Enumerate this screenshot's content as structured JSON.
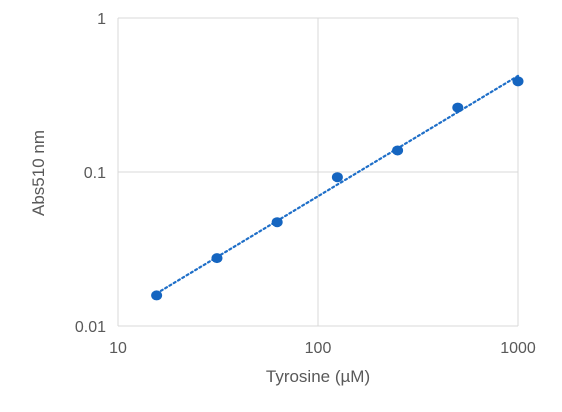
{
  "chart_data": {
    "type": "scatter",
    "title": "",
    "xlabel": "Tyrosine (µM)",
    "ylabel": "Abs510 nm",
    "xscale": "log",
    "yscale": "log",
    "xlim": [
      10,
      1000
    ],
    "ylim": [
      0.01,
      1
    ],
    "x_ticks": [
      10,
      100,
      1000
    ],
    "x_tick_labels": [
      "10",
      "100",
      "1000"
    ],
    "y_ticks": [
      0.01,
      0.1,
      1
    ],
    "y_tick_labels": [
      "0.01",
      "0.1",
      "1"
    ],
    "grid": true,
    "legend": "none",
    "series": [
      {
        "x": [
          15.6,
          31.25,
          62.5,
          125,
          250,
          500,
          1000
        ],
        "y": [
          0.0158,
          0.0276,
          0.0472,
          0.0925,
          0.138,
          0.262,
          0.388
        ],
        "marker_color": "#1565C0",
        "trendline": {
          "type": "power",
          "style": "dotted",
          "color": "#1F6FC8"
        }
      }
    ]
  }
}
